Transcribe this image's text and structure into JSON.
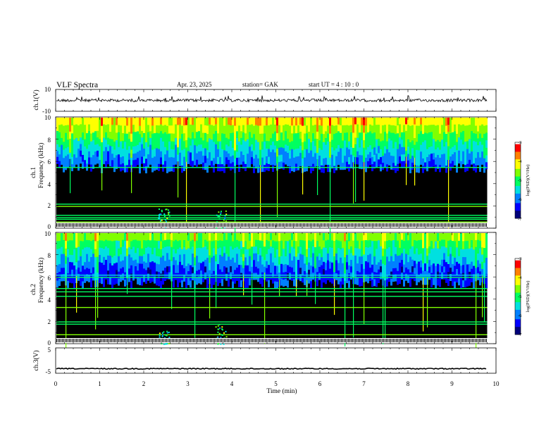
{
  "header": {
    "title": "VLF Spectra",
    "date": "Apr. 23, 2025",
    "station": "station= GAK",
    "start": "start  UT  =   4 : 10 : 0"
  },
  "colors": {
    "spectrogram_background": "#000000",
    "colormap": [
      "#00007a",
      "#0000ff",
      "#0080ff",
      "#00e0e0",
      "#00ff60",
      "#80ff00",
      "#ffff00",
      "#ff8000",
      "#ff0000",
      "#ffffff"
    ]
  },
  "chart_data": [
    {
      "type": "line",
      "name": "ch1-waveform",
      "ylabel": "ch.1(V)",
      "y_ticks": [
        "10",
        "-10"
      ],
      "ylim": [
        -10,
        10
      ],
      "xlim": [
        0,
        10
      ],
      "trace_level": 0,
      "trace_end": 9.8,
      "grid": false
    },
    {
      "type": "heatmap",
      "name": "ch1-spectrogram",
      "ylabel_top": "ch.1",
      "ylabel": "Frequency  (kHz)",
      "y_ticks": [
        "0",
        "2",
        "4",
        "6",
        "8",
        "10"
      ],
      "ylim": [
        0,
        10
      ],
      "xlim": [
        0,
        9.8
      ],
      "colorbar": {
        "label": "log(PSD)(V²/Hz)",
        "ticks": [
          "-3",
          "-4",
          "-5",
          "-6",
          "-7"
        ],
        "range": [
          -7,
          -3
        ]
      },
      "features": {
        "band_top_khz": 10,
        "band_bottom_khz": 6,
        "background_level": -7,
        "band_level": -5,
        "hum_lines_khz": [
          0.2,
          0.45,
          0.6,
          0.85,
          1.0,
          1.2,
          2.0,
          2.2,
          5.5
        ],
        "bursts": [
          {
            "t": 2.45,
            "fmax": 1.8
          },
          {
            "t": 3.75,
            "fmax": 1.6
          }
        ]
      }
    },
    {
      "type": "heatmap",
      "name": "ch2-spectrogram",
      "ylabel_top": "ch.2",
      "ylabel": "Frequency  (kHz)",
      "y_ticks": [
        "0",
        "2",
        "4",
        "6",
        "8",
        "10"
      ],
      "ylim": [
        0,
        10
      ],
      "xlim": [
        0,
        9.8
      ],
      "colorbar": {
        "label": "log(PSD)(V²/Hz)",
        "ticks": [
          "-3",
          "-4",
          "-5",
          "-6",
          "-7"
        ],
        "range": [
          -7,
          -3
        ]
      },
      "features": {
        "band_top_khz": 10,
        "band_bottom_khz": 6,
        "background_level": -7,
        "band_level": -5.5,
        "hum_lines_khz": [
          0.2,
          0.45,
          0.85,
          1.8,
          2.0,
          3.3,
          4.3,
          4.7,
          5.0,
          6.0,
          6.2
        ],
        "bursts": [
          {
            "t": 2.45,
            "fmax": 1.2
          },
          {
            "t": 3.75,
            "fmax": 1.8
          }
        ]
      }
    },
    {
      "type": "line",
      "name": "ch3-waveform",
      "ylabel": "ch.3(V)",
      "y_ticks": [
        "5",
        "-5"
      ],
      "ylim": [
        -5,
        5
      ],
      "xlim": [
        0,
        10
      ],
      "trace_level": -3.2,
      "trace_end": 9.8,
      "grid": false,
      "xlabel": "Time  (min)",
      "x_ticks": [
        "0",
        "1",
        "2",
        "3",
        "4",
        "5",
        "6",
        "7",
        "8",
        "9",
        "10"
      ]
    }
  ]
}
